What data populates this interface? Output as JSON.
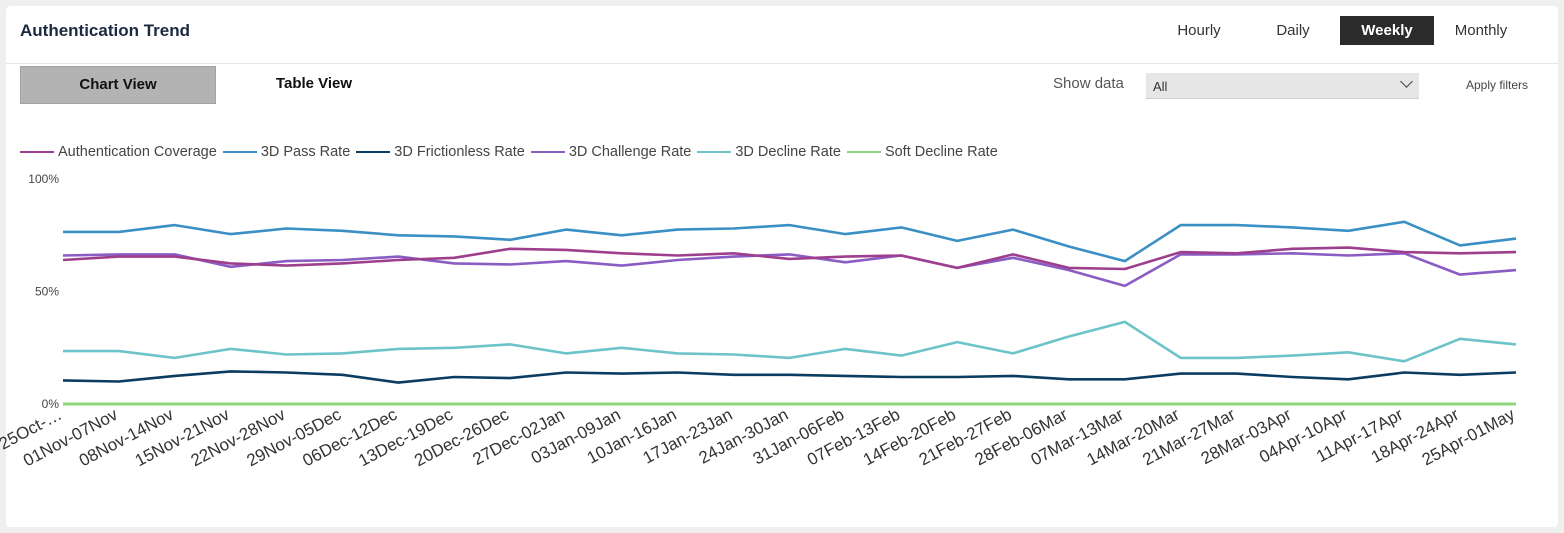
{
  "header": {
    "title": "Authentication Trend"
  },
  "period_tabs": [
    {
      "label": "Hourly",
      "active": false
    },
    {
      "label": "Daily",
      "active": false
    },
    {
      "label": "Weekly",
      "active": true
    },
    {
      "label": "Monthly",
      "active": false
    }
  ],
  "view_tabs": {
    "chart": "Chart View",
    "table": "Table View"
  },
  "filters": {
    "show_data_label": "Show data",
    "selected": "All",
    "apply_label": "Apply filters"
  },
  "chart_data": {
    "type": "line",
    "title": "",
    "xlabel": "",
    "ylabel": "",
    "ylim": [
      0,
      100
    ],
    "y_ticks": [
      "0%",
      "50%",
      "100%"
    ],
    "grid": false,
    "legend": "top-left",
    "categories": [
      "25Oct-…",
      "01Nov-07Nov",
      "08Nov-14Nov",
      "15Nov-21Nov",
      "22Nov-28Nov",
      "29Nov-05Dec",
      "06Dec-12Dec",
      "13Dec-19Dec",
      "20Dec-26Dec",
      "27Dec-02Jan",
      "03Jan-09Jan",
      "10Jan-16Jan",
      "17Jan-23Jan",
      "24Jan-30Jan",
      "31Jan-06Feb",
      "07Feb-13Feb",
      "14Feb-20Feb",
      "21Feb-27Feb",
      "28Feb-06Mar",
      "07Mar-13Mar",
      "14Mar-20Mar",
      "21Mar-27Mar",
      "28Mar-03Apr",
      "04Apr-10Apr",
      "11Apr-17Apr",
      "18Apr-24Apr",
      "25Apr-01May"
    ],
    "series": [
      {
        "name": "Authentication Coverage",
        "color": "#9e3f8e",
        "values": [
          64,
          65.5,
          65.5,
          62.5,
          61.5,
          62.5,
          64,
          65,
          69,
          68.5,
          67,
          66,
          67,
          64.5,
          65.5,
          66,
          60.5,
          66.5,
          60.5,
          60,
          67.5,
          67,
          69,
          69.5,
          67.5,
          67,
          67.5
        ]
      },
      {
        "name": "3D Pass Rate",
        "color": "#3a8fc4",
        "values": [
          76.5,
          76.5,
          79.5,
          75.5,
          78,
          77,
          75,
          74.5,
          73,
          77.5,
          75,
          77.5,
          78,
          79.5,
          75.5,
          78.5,
          72.5,
          77.5,
          70,
          63.5,
          79.5,
          79.5,
          78.5,
          77,
          81,
          70.5,
          73.5
        ]
      },
      {
        "name": "3D Frictionless Rate",
        "color": "#0b3c61",
        "values": [
          10.5,
          10,
          12.5,
          14.5,
          14,
          13,
          9.5,
          12,
          11.5,
          14,
          13.5,
          14,
          13,
          13,
          12.5,
          12,
          12,
          12.5,
          11,
          11,
          13.5,
          13.5,
          12,
          11,
          14,
          13,
          14
        ]
      },
      {
        "name": "3D Challenge Rate",
        "color": "#8a5cc4",
        "values": [
          66,
          66.5,
          66.5,
          61,
          63.5,
          64,
          65.5,
          62.5,
          62,
          63.5,
          61.5,
          64,
          65.5,
          66.5,
          63,
          66,
          60.5,
          65,
          59.5,
          52.5,
          66.5,
          66.5,
          67,
          66,
          67,
          57.5,
          59.5
        ]
      },
      {
        "name": "3D Decline Rate",
        "color": "#6cc3c9",
        "values": [
          23.5,
          23.5,
          20.5,
          24.5,
          22,
          22.5,
          24.5,
          25,
          26.5,
          22.5,
          25,
          22.5,
          22,
          20.5,
          24.5,
          21.5,
          27.5,
          22.5,
          30,
          36.5,
          20.5,
          20.5,
          21.5,
          23,
          19,
          29,
          26.5
        ]
      },
      {
        "name": "Soft Decline Rate",
        "color": "#8fd67a",
        "values": [
          0,
          0,
          0,
          0,
          0,
          0,
          0,
          0,
          0,
          0,
          0,
          0,
          0,
          0,
          0,
          0,
          0,
          0,
          0,
          0,
          0,
          0,
          0,
          0,
          0,
          0,
          0
        ]
      }
    ]
  }
}
